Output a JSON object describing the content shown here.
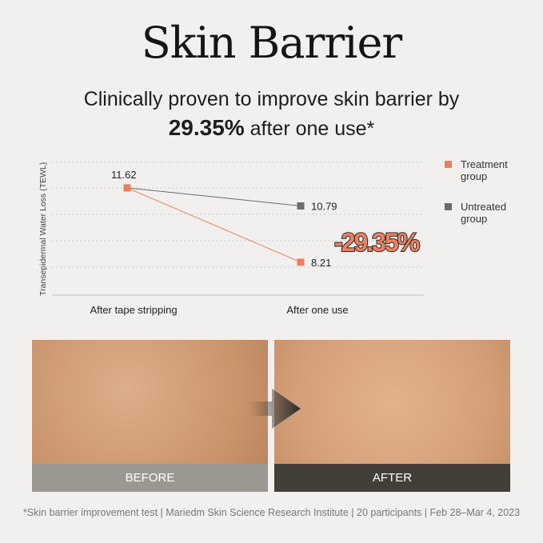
{
  "header": {
    "title": "Skin Barrier",
    "subtitle_line1": "Clinically proven to improve skin barrier by",
    "subtitle_highlight": "29.35%",
    "subtitle_rest": " after one use*"
  },
  "chart_data": {
    "type": "line",
    "categories": [
      "After tape stripping",
      "After one use"
    ],
    "ylabel": "Transepidermal Water Loss (TEWL)",
    "ylim": [
      6.7,
      12.9
    ],
    "grid": true,
    "legend_position": "right",
    "series": [
      {
        "name": "Treatment group",
        "values": [
          11.62,
          8.21
        ],
        "color": "#ee7f5d"
      },
      {
        "name": "Untreated group",
        "values": [
          11.62,
          10.79
        ],
        "color": "#6b6b6b"
      }
    ],
    "data_labels": [
      "11.62",
      "10.79",
      "8.21"
    ],
    "annotation": "-29.35%"
  },
  "legend": {
    "treatment_l1": "Treatment",
    "treatment_l2": "group",
    "untreated_l1": "Untreated",
    "untreated_l2": "group"
  },
  "photos": {
    "before_label": "BEFORE",
    "after_label": "AFTER",
    "arrow_icon": "arrow-right"
  },
  "footnote": "*Skin barrier improvement test | Mariedm Skin Science Research Institute | 20 participants | Feb 28–Mar 4, 2023"
}
